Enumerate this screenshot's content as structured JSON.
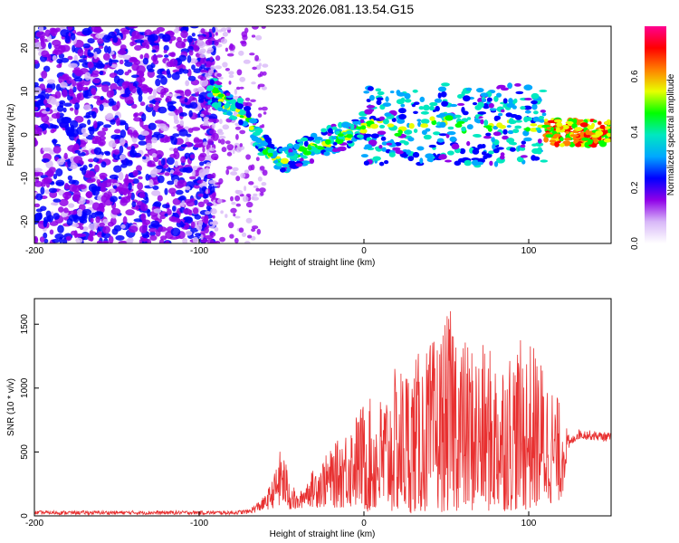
{
  "title": "S233.2026.081.13.54.G15",
  "chart_data": [
    {
      "type": "heatmap",
      "name": "spectrogram",
      "xlabel": "Height of straight line (km)",
      "ylabel": "Frequency (Hz)",
      "xlim": [
        -200,
        150
      ],
      "ylim": [
        -25,
        25
      ],
      "xticks": [
        -200,
        -100,
        0,
        100
      ],
      "xtick_labels": [
        "-200",
        "-100",
        "0",
        "100"
      ],
      "yticks": [
        20,
        10,
        0,
        -10,
        -20
      ],
      "ytick_labels": [
        "20",
        "10",
        "0",
        "-10",
        "-20"
      ],
      "colorbar": {
        "label": "Normalized spectral amplitude",
        "range": [
          0,
          0.78
        ],
        "ticks": [
          0.0,
          0.2,
          0.4,
          0.6
        ],
        "tick_labels": [
          "0.0",
          "0.2",
          "0.4",
          "0.6"
        ],
        "colors": [
          "#ffffff",
          "#d8b8f8",
          "#9000e8",
          "#0000ff",
          "#00a8ff",
          "#00e8c0",
          "#00ff00",
          "#e8ff00",
          "#ff8000",
          "#ff0000",
          "#ff0090"
        ]
      },
      "trend": {
        "x": [
          -92,
          -85,
          -78,
          -72,
          -65,
          -58,
          -50,
          -44,
          -38,
          -30,
          -20,
          -10,
          0,
          10,
          20,
          30,
          40,
          50,
          60,
          70,
          80,
          90,
          100,
          110,
          120,
          130,
          150
        ],
        "y": [
          10,
          8,
          6,
          4,
          0,
          -4,
          -6,
          -5,
          -4,
          -3,
          -1,
          0,
          2,
          2,
          1,
          1.5,
          2.5,
          3,
          2,
          1.5,
          2,
          3,
          2,
          1,
          0.5,
          0.5,
          0.5
        ]
      }
    },
    {
      "type": "line",
      "name": "snr",
      "xlabel": "Height of straight line (km)",
      "ylabel": "SNR (10 * v/v)",
      "xlim": [
        -200,
        150
      ],
      "ylim": [
        0,
        1700
      ],
      "xticks": [
        -200,
        -100,
        0,
        100
      ],
      "xtick_labels": [
        "-200",
        "-100",
        "0",
        "100"
      ],
      "yticks": [
        0,
        500,
        1000,
        1500
      ],
      "ytick_labels": [
        "0",
        "500",
        "1000",
        "1500"
      ],
      "color": "#e83030",
      "envelope": {
        "x": [
          -200,
          -80,
          -70,
          -60,
          -55,
          -50,
          -45,
          -40,
          -35,
          -30,
          -20,
          -10,
          0,
          10,
          20,
          30,
          40,
          50,
          55,
          60,
          70,
          80,
          90,
          100,
          110,
          120,
          125,
          130,
          150
        ],
        "max": [
          40,
          40,
          50,
          160,
          300,
          560,
          300,
          150,
          280,
          380,
          520,
          700,
          900,
          950,
          1180,
          1250,
          1350,
          1550,
          1700,
          1400,
          1350,
          1300,
          1350,
          1400,
          1200,
          850,
          600,
          680,
          650
        ],
        "min": [
          10,
          10,
          15,
          40,
          60,
          40,
          30,
          40,
          80,
          60,
          60,
          50,
          30,
          20,
          20,
          20,
          30,
          30,
          40,
          30,
          30,
          30,
          40,
          40,
          80,
          120,
          540,
          600,
          580
        ]
      }
    }
  ]
}
